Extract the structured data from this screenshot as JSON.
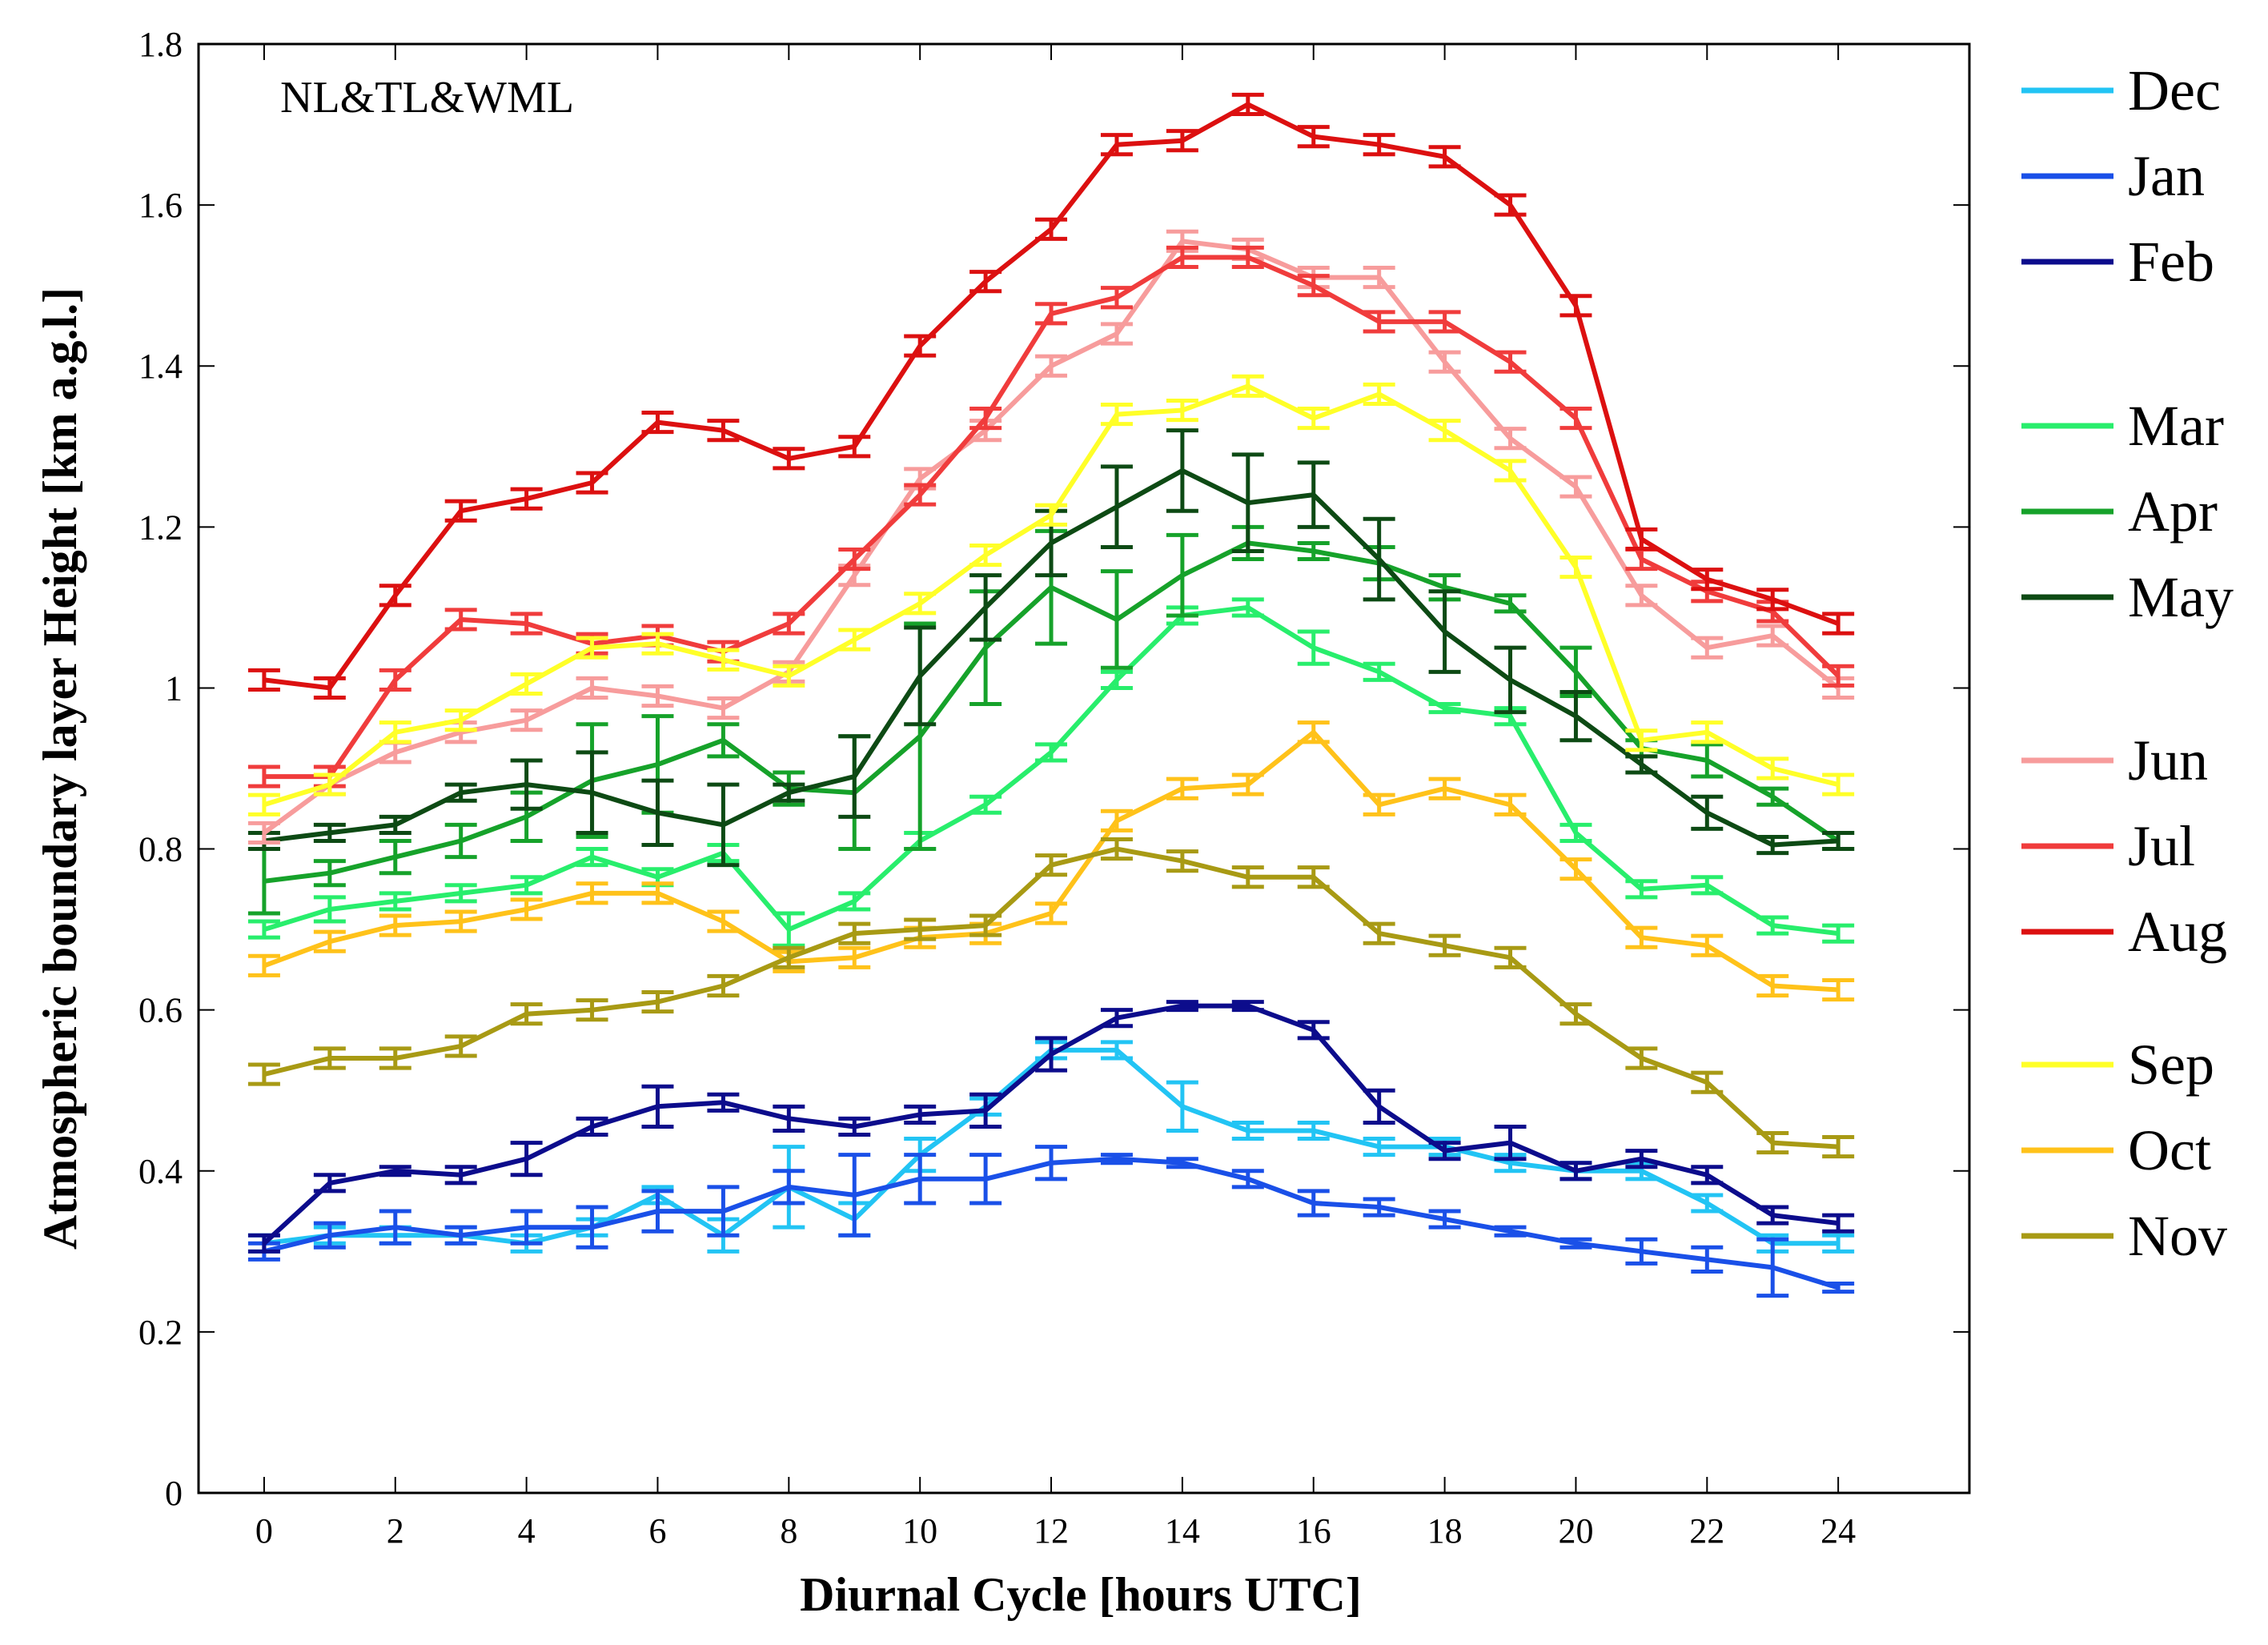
{
  "chart_data": {
    "type": "line",
    "title": "",
    "annotation": "NL&TL&WML",
    "xlabel": "Diurnal Cycle [hours UTC]",
    "ylabel": "Atmospheric boundary layer Height [km a.g.l.]",
    "xlim": [
      -1,
      26
    ],
    "ylim": [
      0,
      1.8
    ],
    "xticks": [
      0,
      2,
      4,
      6,
      8,
      10,
      12,
      14,
      16,
      18,
      20,
      22,
      24
    ],
    "yticks": [
      0,
      0.2,
      0.4,
      0.6,
      0.8,
      1,
      1.2,
      1.4,
      1.6,
      1.8
    ],
    "ytick_labels": [
      "0",
      "0.2",
      "0.4",
      "0.6",
      "0.8",
      "1",
      "1.2",
      "1.4",
      "1.6",
      "1.8"
    ],
    "legend_position": "right, outside plot",
    "x": [
      0,
      1,
      2,
      3,
      4,
      5,
      6,
      7,
      8,
      9,
      10,
      11,
      12,
      13,
      14,
      15,
      16,
      17,
      18,
      19,
      20,
      21,
      22,
      23,
      24
    ],
    "series": [
      {
        "name": "Dec",
        "color": "#22c4f4",
        "group": 0,
        "values": [
          0.31,
          0.32,
          0.32,
          0.32,
          0.31,
          0.33,
          0.37,
          0.32,
          0.38,
          0.34,
          0.42,
          0.48,
          0.55,
          0.55,
          0.48,
          0.45,
          0.45,
          0.43,
          0.43,
          0.41,
          0.4,
          0.4,
          0.36,
          0.31,
          0.31
        ],
        "errors": [
          0.01,
          0.01,
          0.01,
          0.01,
          0.01,
          0.01,
          0.01,
          0.02,
          0.05,
          0.02,
          0.02,
          0.01,
          0.01,
          0.01,
          0.03,
          0.01,
          0.01,
          0.01,
          0.01,
          0.01,
          0.01,
          0.01,
          0.01,
          0.01,
          0.01
        ]
      },
      {
        "name": "Jan",
        "color": "#1a50e8",
        "group": 0,
        "values": [
          0.3,
          0.32,
          0.33,
          0.32,
          0.33,
          0.33,
          0.35,
          0.35,
          0.38,
          0.37,
          0.39,
          0.39,
          0.41,
          0.415,
          0.41,
          0.39,
          0.36,
          0.355,
          0.34,
          0.325,
          0.31,
          0.3,
          0.29,
          0.28,
          0.255
        ],
        "errors": [
          0.01,
          0.015,
          0.02,
          0.01,
          0.02,
          0.025,
          0.025,
          0.03,
          0.02,
          0.05,
          0.03,
          0.03,
          0.02,
          0.005,
          0.005,
          0.01,
          0.015,
          0.01,
          0.01,
          0.005,
          0.005,
          0.015,
          0.015,
          0.035,
          0.005
        ]
      },
      {
        "name": "Feb",
        "color": "#0c0c8c",
        "group": 0,
        "values": [
          0.31,
          0.385,
          0.4,
          0.395,
          0.415,
          0.455,
          0.48,
          0.485,
          0.465,
          0.455,
          0.47,
          0.475,
          0.545,
          0.59,
          0.605,
          0.605,
          0.575,
          0.48,
          0.425,
          0.435,
          0.4,
          0.415,
          0.395,
          0.345,
          0.335
        ],
        "errors": [
          0.01,
          0.01,
          0.005,
          0.01,
          0.02,
          0.01,
          0.025,
          0.01,
          0.015,
          0.01,
          0.01,
          0.02,
          0.02,
          0.01,
          0.005,
          0.005,
          0.01,
          0.02,
          0.01,
          0.02,
          0.01,
          0.01,
          0.01,
          0.01,
          0.01
        ]
      },
      {
        "name": "Mar",
        "color": "#28ee6c",
        "group": 1,
        "values": [
          0.7,
          0.725,
          0.735,
          0.745,
          0.755,
          0.79,
          0.765,
          0.795,
          0.7,
          0.735,
          0.81,
          0.855,
          0.92,
          1.01,
          1.09,
          1.1,
          1.05,
          1.02,
          0.975,
          0.965,
          0.82,
          0.75,
          0.755,
          0.705,
          0.695
        ],
        "errors": [
          0.01,
          0.015,
          0.01,
          0.01,
          0.01,
          0.01,
          0.01,
          0.01,
          0.02,
          0.01,
          0.01,
          0.01,
          0.01,
          0.01,
          0.01,
          0.01,
          0.02,
          0.01,
          0.005,
          0.01,
          0.01,
          0.01,
          0.01,
          0.01,
          0.01
        ]
      },
      {
        "name": "Apr",
        "color": "#16a22a",
        "group": 1,
        "values": [
          0.76,
          0.77,
          0.79,
          0.81,
          0.84,
          0.885,
          0.905,
          0.935,
          0.875,
          0.87,
          0.94,
          1.05,
          1.125,
          1.085,
          1.14,
          1.18,
          1.17,
          1.155,
          1.125,
          1.105,
          1.02,
          0.925,
          0.91,
          0.865,
          0.81
        ],
        "errors": [
          0.04,
          0.015,
          0.02,
          0.02,
          0.03,
          0.07,
          0.06,
          0.02,
          0.02,
          0.07,
          0.14,
          0.07,
          0.07,
          0.06,
          0.05,
          0.02,
          0.01,
          0.02,
          0.015,
          0.01,
          0.03,
          0.01,
          0.02,
          0.01,
          0.01
        ]
      },
      {
        "name": "May",
        "color": "#0d4a14",
        "group": 1,
        "values": [
          0.81,
          0.82,
          0.83,
          0.87,
          0.88,
          0.87,
          0.845,
          0.83,
          0.87,
          0.89,
          1.015,
          1.1,
          1.18,
          1.225,
          1.27,
          1.23,
          1.24,
          1.16,
          1.07,
          1.01,
          0.965,
          0.905,
          0.845,
          0.805,
          0.81
        ],
        "errors": [
          0.01,
          0.01,
          0.01,
          0.01,
          0.03,
          0.05,
          0.04,
          0.05,
          0.01,
          0.05,
          0.06,
          0.04,
          0.04,
          0.05,
          0.05,
          0.06,
          0.04,
          0.05,
          0.05,
          0.04,
          0.03,
          0.01,
          0.02,
          0.01,
          0.01
        ]
      },
      {
        "name": "Jun",
        "color": "#f79c9c",
        "group": 2,
        "values": [
          0.82,
          0.88,
          0.92,
          0.945,
          0.96,
          1.0,
          0.99,
          0.975,
          1.02,
          1.14,
          1.26,
          1.32,
          1.4,
          1.44,
          1.555,
          1.545,
          1.51,
          1.51,
          1.405,
          1.31,
          1.25,
          1.115,
          1.05,
          1.065,
          1.0
        ]
      },
      {
        "name": "Jul",
        "color": "#f03c3c",
        "group": 2,
        "values": [
          0.89,
          0.89,
          1.01,
          1.085,
          1.08,
          1.055,
          1.065,
          1.045,
          1.08,
          1.16,
          1.24,
          1.335,
          1.465,
          1.485,
          1.535,
          1.535,
          1.5,
          1.455,
          1.455,
          1.405,
          1.335,
          1.16,
          1.12,
          1.095,
          1.015
        ]
      },
      {
        "name": "Aug",
        "color": "#dc1010",
        "group": 2,
        "values": [
          1.01,
          1.0,
          1.115,
          1.22,
          1.235,
          1.255,
          1.33,
          1.32,
          1.285,
          1.3,
          1.425,
          1.505,
          1.57,
          1.675,
          1.68,
          1.725,
          1.685,
          1.675,
          1.66,
          1.6,
          1.475,
          1.185,
          1.135,
          1.11,
          1.08
        ]
      },
      {
        "name": "Sep",
        "color": "#ffff28",
        "group": 3,
        "values": [
          0.855,
          0.88,
          0.945,
          0.96,
          1.005,
          1.05,
          1.055,
          1.035,
          1.015,
          1.06,
          1.105,
          1.165,
          1.215,
          1.34,
          1.345,
          1.375,
          1.335,
          1.365,
          1.32,
          1.27,
          1.15,
          0.935,
          0.945,
          0.9,
          0.88
        ]
      },
      {
        "name": "Oct",
        "color": "#ffc21a",
        "group": 3,
        "values": [
          0.655,
          0.685,
          0.705,
          0.71,
          0.725,
          0.745,
          0.745,
          0.71,
          0.66,
          0.665,
          0.69,
          0.695,
          0.72,
          0.835,
          0.875,
          0.88,
          0.945,
          0.855,
          0.875,
          0.855,
          0.775,
          0.69,
          0.68,
          0.63,
          0.625
        ]
      },
      {
        "name": "Nov",
        "color": "#a89a14",
        "group": 3,
        "values": [
          0.52,
          0.54,
          0.54,
          0.555,
          0.595,
          0.6,
          0.61,
          0.63,
          0.665,
          0.695,
          0.7,
          0.705,
          0.78,
          0.8,
          0.785,
          0.765,
          0.765,
          0.695,
          0.68,
          0.665,
          0.595,
          0.54,
          0.51,
          0.435,
          0.43
        ]
      }
    ]
  }
}
